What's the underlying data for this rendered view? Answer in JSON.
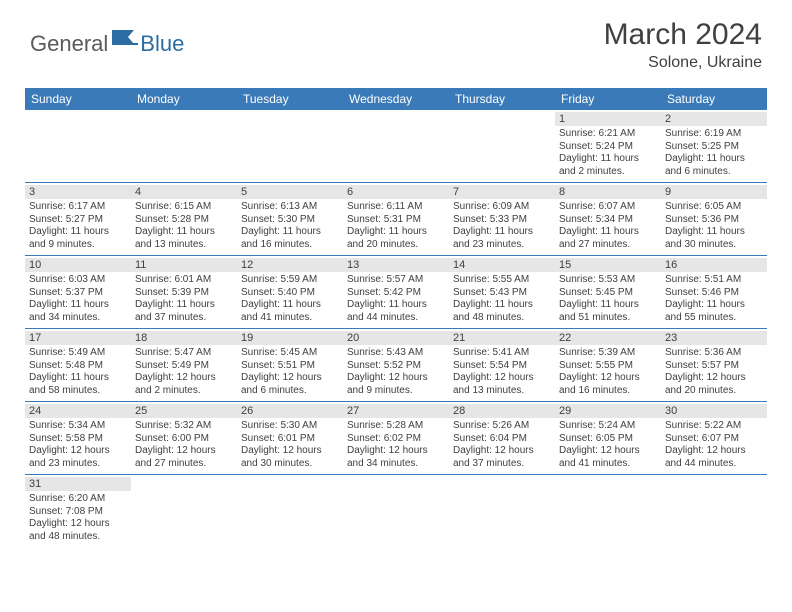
{
  "brand": {
    "part1": "General",
    "part2": "Blue"
  },
  "title": "March 2024",
  "location": "Solone, Ukraine",
  "colors": {
    "header_bg": "#3a7ab8",
    "header_text": "#ffffff",
    "daynum_bg": "#e6e6e6",
    "text": "#404040",
    "divider": "#3a7ab8",
    "brand_gray": "#5a5a5a",
    "brand_blue": "#2b6ca3"
  },
  "daysOfWeek": [
    "Sunday",
    "Monday",
    "Tuesday",
    "Wednesday",
    "Thursday",
    "Friday",
    "Saturday"
  ],
  "weeks": [
    [
      null,
      null,
      null,
      null,
      null,
      {
        "n": "1",
        "sr": "6:21 AM",
        "ss": "5:24 PM",
        "dl": "11 hours and 2 minutes."
      },
      {
        "n": "2",
        "sr": "6:19 AM",
        "ss": "5:25 PM",
        "dl": "11 hours and 6 minutes."
      }
    ],
    [
      {
        "n": "3",
        "sr": "6:17 AM",
        "ss": "5:27 PM",
        "dl": "11 hours and 9 minutes."
      },
      {
        "n": "4",
        "sr": "6:15 AM",
        "ss": "5:28 PM",
        "dl": "11 hours and 13 minutes."
      },
      {
        "n": "5",
        "sr": "6:13 AM",
        "ss": "5:30 PM",
        "dl": "11 hours and 16 minutes."
      },
      {
        "n": "6",
        "sr": "6:11 AM",
        "ss": "5:31 PM",
        "dl": "11 hours and 20 minutes."
      },
      {
        "n": "7",
        "sr": "6:09 AM",
        "ss": "5:33 PM",
        "dl": "11 hours and 23 minutes."
      },
      {
        "n": "8",
        "sr": "6:07 AM",
        "ss": "5:34 PM",
        "dl": "11 hours and 27 minutes."
      },
      {
        "n": "9",
        "sr": "6:05 AM",
        "ss": "5:36 PM",
        "dl": "11 hours and 30 minutes."
      }
    ],
    [
      {
        "n": "10",
        "sr": "6:03 AM",
        "ss": "5:37 PM",
        "dl": "11 hours and 34 minutes."
      },
      {
        "n": "11",
        "sr": "6:01 AM",
        "ss": "5:39 PM",
        "dl": "11 hours and 37 minutes."
      },
      {
        "n": "12",
        "sr": "5:59 AM",
        "ss": "5:40 PM",
        "dl": "11 hours and 41 minutes."
      },
      {
        "n": "13",
        "sr": "5:57 AM",
        "ss": "5:42 PM",
        "dl": "11 hours and 44 minutes."
      },
      {
        "n": "14",
        "sr": "5:55 AM",
        "ss": "5:43 PM",
        "dl": "11 hours and 48 minutes."
      },
      {
        "n": "15",
        "sr": "5:53 AM",
        "ss": "5:45 PM",
        "dl": "11 hours and 51 minutes."
      },
      {
        "n": "16",
        "sr": "5:51 AM",
        "ss": "5:46 PM",
        "dl": "11 hours and 55 minutes."
      }
    ],
    [
      {
        "n": "17",
        "sr": "5:49 AM",
        "ss": "5:48 PM",
        "dl": "11 hours and 58 minutes."
      },
      {
        "n": "18",
        "sr": "5:47 AM",
        "ss": "5:49 PM",
        "dl": "12 hours and 2 minutes."
      },
      {
        "n": "19",
        "sr": "5:45 AM",
        "ss": "5:51 PM",
        "dl": "12 hours and 6 minutes."
      },
      {
        "n": "20",
        "sr": "5:43 AM",
        "ss": "5:52 PM",
        "dl": "12 hours and 9 minutes."
      },
      {
        "n": "21",
        "sr": "5:41 AM",
        "ss": "5:54 PM",
        "dl": "12 hours and 13 minutes."
      },
      {
        "n": "22",
        "sr": "5:39 AM",
        "ss": "5:55 PM",
        "dl": "12 hours and 16 minutes."
      },
      {
        "n": "23",
        "sr": "5:36 AM",
        "ss": "5:57 PM",
        "dl": "12 hours and 20 minutes."
      }
    ],
    [
      {
        "n": "24",
        "sr": "5:34 AM",
        "ss": "5:58 PM",
        "dl": "12 hours and 23 minutes."
      },
      {
        "n": "25",
        "sr": "5:32 AM",
        "ss": "6:00 PM",
        "dl": "12 hours and 27 minutes."
      },
      {
        "n": "26",
        "sr": "5:30 AM",
        "ss": "6:01 PM",
        "dl": "12 hours and 30 minutes."
      },
      {
        "n": "27",
        "sr": "5:28 AM",
        "ss": "6:02 PM",
        "dl": "12 hours and 34 minutes."
      },
      {
        "n": "28",
        "sr": "5:26 AM",
        "ss": "6:04 PM",
        "dl": "12 hours and 37 minutes."
      },
      {
        "n": "29",
        "sr": "5:24 AM",
        "ss": "6:05 PM",
        "dl": "12 hours and 41 minutes."
      },
      {
        "n": "30",
        "sr": "5:22 AM",
        "ss": "6:07 PM",
        "dl": "12 hours and 44 minutes."
      }
    ],
    [
      {
        "n": "31",
        "sr": "6:20 AM",
        "ss": "7:08 PM",
        "dl": "12 hours and 48 minutes."
      },
      null,
      null,
      null,
      null,
      null,
      null
    ]
  ],
  "labels": {
    "sunrise": "Sunrise:",
    "sunset": "Sunset:",
    "daylight": "Daylight:"
  }
}
